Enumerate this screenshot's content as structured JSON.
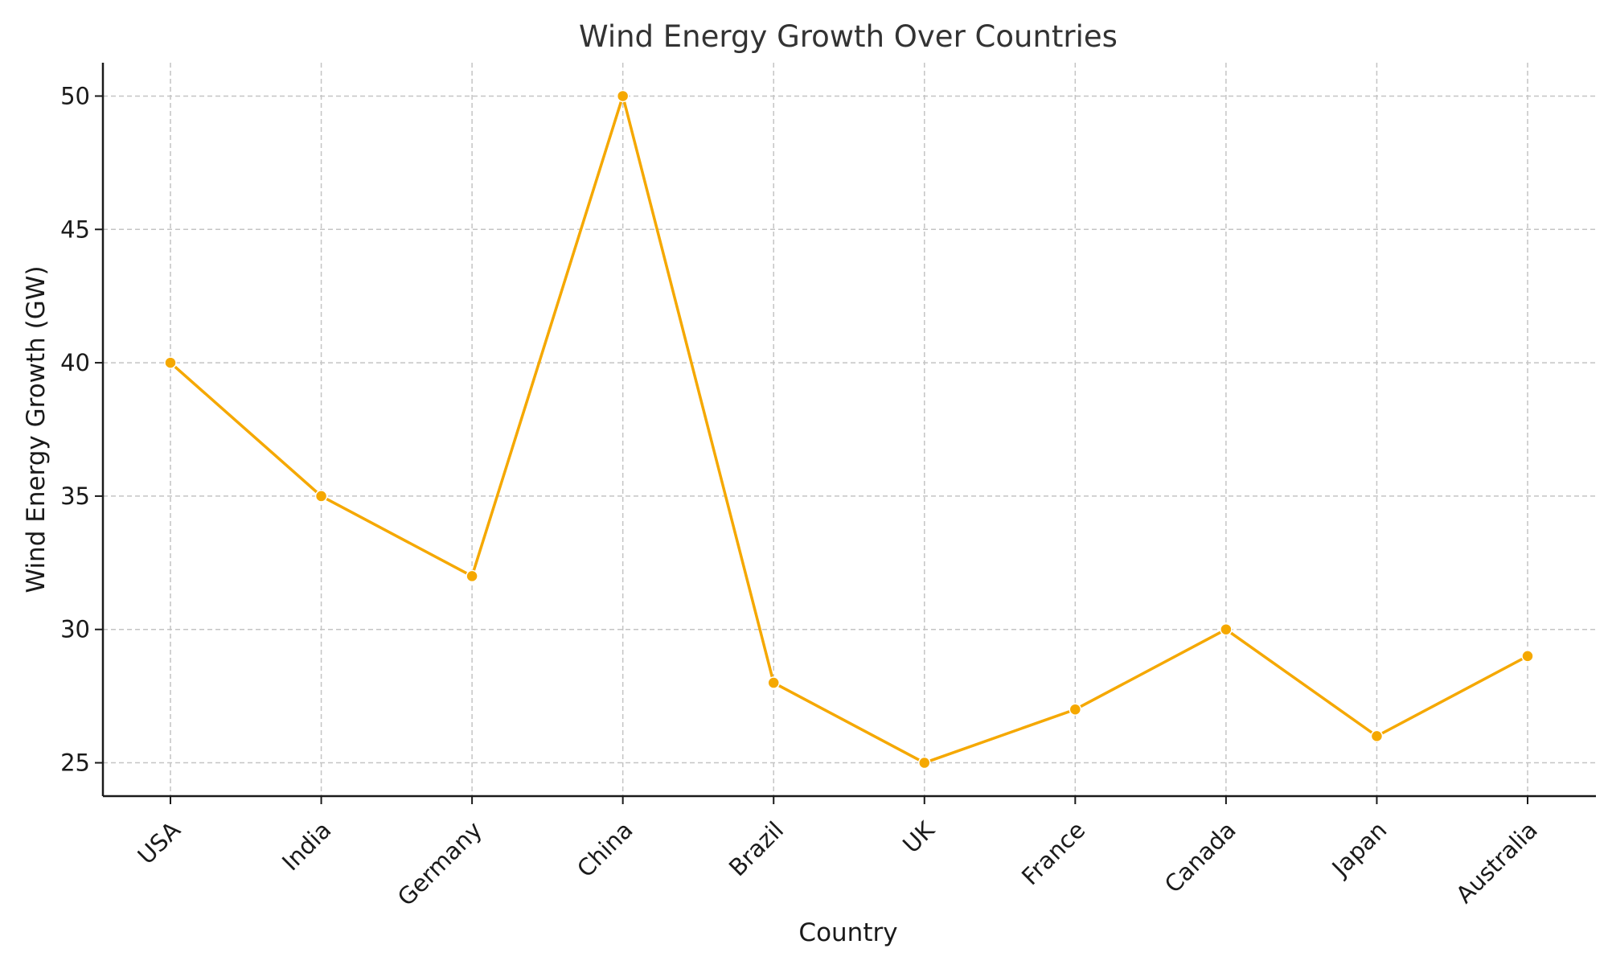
{
  "chart_data": {
    "type": "line",
    "title": "Wind Energy Growth Over Countries",
    "xlabel": "Country",
    "ylabel": "Wind Energy Growth (GW)",
    "categories": [
      "USA",
      "India",
      "Germany",
      "China",
      "Brazil",
      "UK",
      "France",
      "Canada",
      "Japan",
      "Australia"
    ],
    "series": [
      {
        "values": [
          40,
          35,
          32,
          50,
          28,
          25,
          27,
          30,
          26,
          29
        ]
      }
    ],
    "yticks": [
      25,
      30,
      35,
      40,
      45,
      50
    ],
    "ylim": [
      23.75,
      51.25
    ],
    "grid": true,
    "color": "#f5a800"
  }
}
